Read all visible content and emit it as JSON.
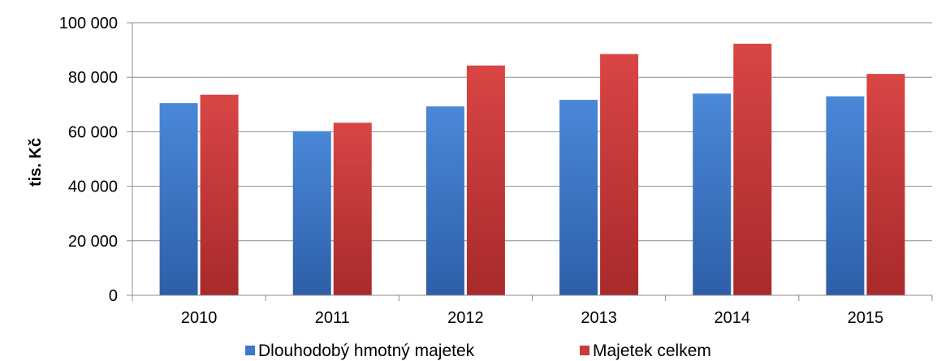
{
  "chart_data": {
    "type": "bar",
    "categories": [
      "2010",
      "2011",
      "2012",
      "2013",
      "2014",
      "2015"
    ],
    "series": [
      {
        "name": "Dlouhodobý hmotný majetek",
        "values": [
          70500,
          60200,
          69300,
          71700,
          74000,
          73000
        ],
        "color": "#3b78c8"
      },
      {
        "name": "Majetek celkem",
        "values": [
          73600,
          63300,
          84300,
          88500,
          92300,
          81200
        ],
        "color": "#c93a3a"
      }
    ],
    "title": "",
    "xlabel": "",
    "ylabel": "tis. Kč",
    "ylim": [
      0,
      100000
    ],
    "yticks": [
      {
        "value": 0,
        "label": "0"
      },
      {
        "value": 20000,
        "label": "20 000"
      },
      {
        "value": 40000,
        "label": "40 000"
      },
      {
        "value": 60000,
        "label": "60 000"
      },
      {
        "value": 80000,
        "label": "80 000"
      },
      {
        "value": 100000,
        "label": "100 000"
      }
    ],
    "grid": true,
    "legend_position": "bottom"
  }
}
